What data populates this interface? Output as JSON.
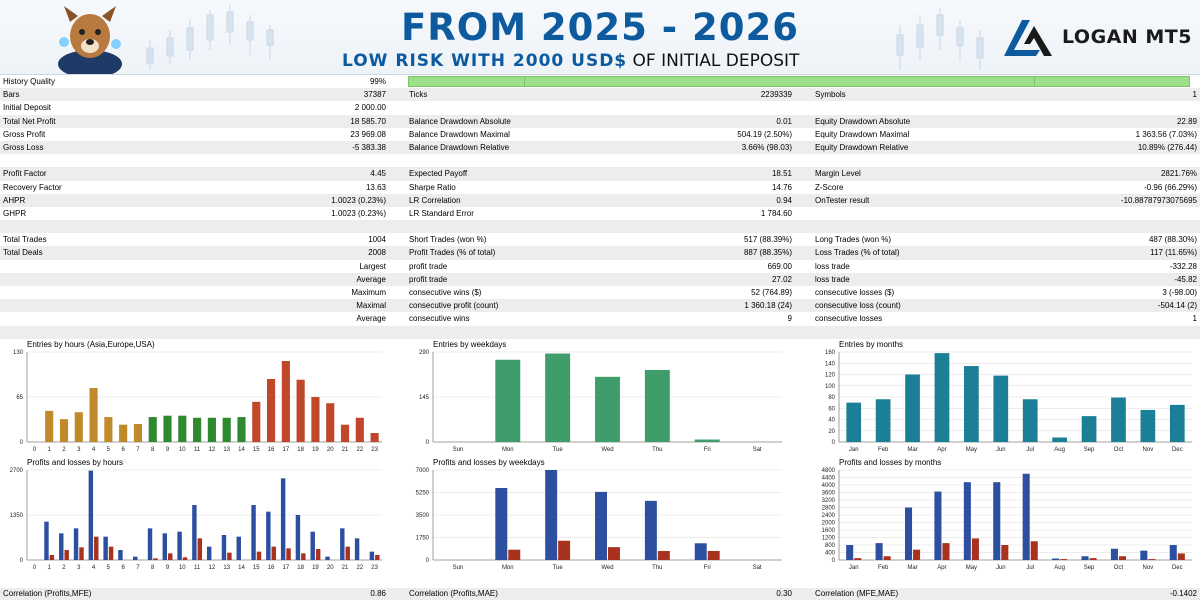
{
  "banner": {
    "title": "FROM 2025 - 2026",
    "subtitle_highlight": "LOW RISK WITH 2000 USD$",
    "subtitle_rest": " OF INITIAL DEPOSIT",
    "brand": "LOGAN MT5",
    "accent_color": "#0e5a9e"
  },
  "report": {
    "history_quality": {
      "label": "History Quality",
      "value": "99%"
    },
    "row_bars": {
      "l1": "Bars",
      "v1": "37387",
      "l2": "Ticks",
      "v2": "2239339",
      "l3": "Symbols",
      "v3": "1"
    },
    "row_deposit": {
      "l1": "Initial Deposit",
      "v1": "2 000.00"
    },
    "row_net": {
      "l1": "Total Net Profit",
      "v1": "18 585.70",
      "l2": "Balance Drawdown Absolute",
      "v2": "0.01",
      "l3": "Equity Drawdown Absolute",
      "v3": "22.89"
    },
    "row_gross_profit": {
      "l1": "Gross Profit",
      "v1": "23 969.08",
      "l2": "Balance Drawdown Maximal",
      "v2": "504.19 (2.50%)",
      "l3": "Equity Drawdown Maximal",
      "v3": "1 363.56 (7.03%)"
    },
    "row_gross_loss": {
      "l1": "Gross Loss",
      "v1": "-5 383.38",
      "l2": "Balance Drawdown Relative",
      "v2": "3.66% (98.03)",
      "l3": "Equity Drawdown Relative",
      "v3": "10.89% (276.44)"
    },
    "row_pf": {
      "l1": "Profit Factor",
      "v1": "4.45",
      "l2": "Expected Payoff",
      "v2": "18.51",
      "l3": "Margin Level",
      "v3": "2821.76%"
    },
    "row_rf": {
      "l1": "Recovery Factor",
      "v1": "13.63",
      "l2": "Sharpe Ratio",
      "v2": "14.76",
      "l3": "Z-Score",
      "v3": "-0.96 (66.29%)"
    },
    "row_ahpr": {
      "l1": "AHPR",
      "v1": "1.0023 (0.23%)",
      "l2": "LR Correlation",
      "v2": "0.94",
      "l3": "OnTester result",
      "v3": "-10.88787973075695"
    },
    "row_ghpr": {
      "l1": "GHPR",
      "v1": "1.0023 (0.23%)",
      "l2": "LR Standard Error",
      "v2": "1 784.60"
    },
    "row_trades": {
      "l1": "Total Trades",
      "v1": "1004",
      "l2": "Short Trades (won %)",
      "v2": "517 (88.39%)",
      "l3": "Long Trades (won %)",
      "v3": "487 (88.30%)"
    },
    "row_deals": {
      "l1": "Total Deals",
      "v1": "2008",
      "l2": "Profit Trades (% of total)",
      "v2": "887 (88.35%)",
      "l3": "Loss Trades (% of total)",
      "v3": "117 (11.65%)"
    },
    "row_largest": {
      "l1": "Largest",
      "l2": "profit trade",
      "v2": "669.00",
      "l3": "loss trade",
      "v3": "-332.28"
    },
    "row_average": {
      "l1": "Average",
      "l2": "profit trade",
      "v2": "27.02",
      "l3": "loss trade",
      "v3": "-45.82"
    },
    "row_maximum": {
      "l1": "Maximum",
      "l2": "consecutive wins ($)",
      "v2": "52 (764.89)",
      "l3": "consecutive losses ($)",
      "v3": "3 (-98.00)"
    },
    "row_maximal": {
      "l1": "Maximal",
      "l2": "consecutive profit (count)",
      "v2": "1 360.18 (24)",
      "l3": "consecutive loss (count)",
      "v3": "-504.14 (2)"
    },
    "row_avg2": {
      "l1": "Average",
      "l2": "consecutive wins",
      "v2": "9",
      "l3": "consecutive losses",
      "v3": "1"
    }
  },
  "footer": {
    "l1": "Correlation (Profits,MFE)",
    "v1": "0.86",
    "l2": "Correlation (Profits,MAE)",
    "v2": "0.30",
    "l3": "Correlation (MFE,MAE)",
    "v3": "-0.1402"
  },
  "chart_data": [
    {
      "id": "hours_entries",
      "type": "bar",
      "title": "Entries by hours (Asia,Europe,USA)",
      "categories": [
        "0",
        "1",
        "2",
        "3",
        "4",
        "5",
        "6",
        "7",
        "8",
        "9",
        "10",
        "11",
        "12",
        "13",
        "14",
        "15",
        "16",
        "17",
        "18",
        "19",
        "20",
        "21",
        "22",
        "23"
      ],
      "values": [
        0,
        45,
        33,
        43,
        78,
        36,
        25,
        26,
        36,
        38,
        38,
        35,
        35,
        35,
        36,
        58,
        91,
        117,
        90,
        65,
        56,
        25,
        35,
        13
      ],
      "ylim": [
        0,
        130
      ],
      "yticks": [
        "0",
        "65",
        "130"
      ],
      "colors": [
        "#c08a2a",
        "#c08a2a",
        "#c08a2a",
        "#c08a2a",
        "#c08a2a",
        "#c08a2a",
        "#c08a2a",
        "#c08a2a",
        "#2e8a2e",
        "#2e8a2e",
        "#2e8a2e",
        "#2e8a2e",
        "#2e8a2e",
        "#2e8a2e",
        "#2e8a2e",
        "#c0472a",
        "#c0472a",
        "#c0472a",
        "#c0472a",
        "#c0472a",
        "#c0472a",
        "#c0472a",
        "#c0472a",
        "#c0472a"
      ]
    },
    {
      "id": "weekday_entries",
      "type": "bar",
      "title": "Entries by weekdays",
      "categories": [
        "Sun",
        "Mon",
        "Tue",
        "Wed",
        "Thu",
        "Fri",
        "Sat"
      ],
      "values": [
        0,
        265,
        285,
        210,
        232,
        8,
        0
      ],
      "ylim": [
        0,
        290
      ],
      "yticks": [
        "0",
        "145",
        "290"
      ],
      "colors": [
        "#3e9d6a"
      ]
    },
    {
      "id": "month_entries",
      "type": "bar",
      "title": "Entries by months",
      "categories": [
        "Jan",
        "Feb",
        "Mar",
        "Apr",
        "May",
        "Jun",
        "Jul",
        "Aug",
        "Sep",
        "Oct",
        "Nov",
        "Dec"
      ],
      "values": [
        70,
        76,
        120,
        158,
        135,
        118,
        76,
        8,
        46,
        79,
        57,
        66
      ],
      "ylim": [
        0,
        160
      ],
      "yticks": [
        "0",
        "20",
        "40",
        "60",
        "80",
        "100",
        "120",
        "140",
        "160"
      ],
      "colors": [
        "#1b7f96"
      ]
    },
    {
      "id": "hours_pl",
      "type": "bar",
      "title": "Profits and losses by hours",
      "categories": [
        "0",
        "1",
        "2",
        "3",
        "4",
        "5",
        "6",
        "7",
        "8",
        "9",
        "10",
        "11",
        "12",
        "13",
        "14",
        "15",
        "16",
        "17",
        "18",
        "19",
        "20",
        "21",
        "22",
        "23"
      ],
      "series": [
        {
          "name": "Profits",
          "values": [
            0,
            1150,
            800,
            950,
            2680,
            700,
            300,
            100,
            950,
            800,
            850,
            1650,
            400,
            750,
            700,
            1650,
            1450,
            2450,
            1350,
            850,
            100,
            950,
            650,
            250
          ]
        },
        {
          "name": "Losses",
          "values": [
            0,
            150,
            300,
            380,
            700,
            400,
            0,
            0,
            50,
            200,
            80,
            650,
            0,
            220,
            0,
            250,
            400,
            350,
            200,
            330,
            0,
            400,
            0,
            150
          ]
        }
      ],
      "ylim": [
        0,
        2700
      ],
      "yticks": [
        "0",
        "1350",
        "2700"
      ],
      "colors": [
        "#2d4fa0",
        "#a8321e"
      ]
    },
    {
      "id": "weekday_pl",
      "type": "bar",
      "title": "Profits and losses by weekdays",
      "categories": [
        "Sun",
        "Mon",
        "Tue",
        "Wed",
        "Thu",
        "Fri",
        "Sat"
      ],
      "series": [
        {
          "name": "Profits",
          "values": [
            0,
            5600,
            7000,
            5300,
            4600,
            1300,
            0
          ]
        },
        {
          "name": "Losses",
          "values": [
            0,
            800,
            1500,
            1000,
            700,
            700,
            0
          ]
        }
      ],
      "ylim": [
        0,
        7000
      ],
      "yticks": [
        "0",
        "1750",
        "3500",
        "5250",
        "7000"
      ],
      "colors": [
        "#2d4fa0",
        "#a8321e"
      ]
    },
    {
      "id": "month_pl",
      "type": "bar",
      "title": "Profits and losses by months",
      "categories": [
        "Jan",
        "Feb",
        "Mar",
        "Apr",
        "May",
        "Jun",
        "Jul",
        "Aug",
        "Sep",
        "Oct",
        "Nov",
        "Dec"
      ],
      "series": [
        {
          "name": "Profits",
          "values": [
            800,
            900,
            2800,
            3650,
            4150,
            4150,
            4600,
            80,
            200,
            600,
            500,
            800
          ]
        },
        {
          "name": "Losses",
          "values": [
            100,
            200,
            550,
            900,
            1150,
            800,
            1000,
            50,
            100,
            200,
            50,
            350
          ]
        }
      ],
      "ylim": [
        0,
        4800
      ],
      "yticks": [
        "0",
        "400",
        "800",
        "1200",
        "1600",
        "2000",
        "2400",
        "2800",
        "3200",
        "3600",
        "4000",
        "4400",
        "4800"
      ],
      "colors": [
        "#2d4fa0",
        "#a8321e"
      ]
    }
  ]
}
